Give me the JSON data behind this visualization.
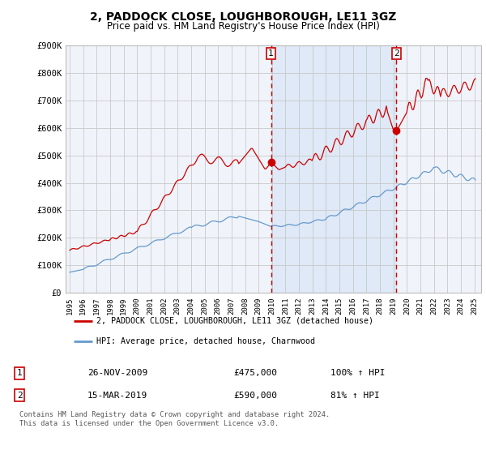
{
  "title": "2, PADDOCK CLOSE, LOUGHBOROUGH, LE11 3GZ",
  "subtitle": "Price paid vs. HM Land Registry's House Price Index (HPI)",
  "title_fontsize": 10,
  "subtitle_fontsize": 8.5,
  "background_color": "#ffffff",
  "plot_bg_color": "#f0f4fa",
  "grid_color": "#c8c8c8",
  "red_line_color": "#cc0000",
  "blue_line_color": "#6699cc",
  "shade_color": "#ccddf5",
  "ylim": [
    0,
    900000
  ],
  "yticks": [
    0,
    100000,
    200000,
    300000,
    400000,
    500000,
    600000,
    700000,
    800000,
    900000
  ],
  "ytick_labels": [
    "£0",
    "£100K",
    "£200K",
    "£300K",
    "£400K",
    "£500K",
    "£600K",
    "£700K",
    "£800K",
    "£900K"
  ],
  "xlim_start": 1994.7,
  "xlim_end": 2025.5,
  "xtick_years": [
    1995,
    1996,
    1997,
    1998,
    1999,
    2000,
    2001,
    2002,
    2003,
    2004,
    2005,
    2006,
    2007,
    2008,
    2009,
    2010,
    2011,
    2012,
    2013,
    2014,
    2015,
    2016,
    2017,
    2018,
    2019,
    2020,
    2021,
    2022,
    2023,
    2024,
    2025
  ],
  "event1_x": 2009.92,
  "event1_y": 475000,
  "event1_label": "1",
  "event1_date": "26-NOV-2009",
  "event1_price": "£475,000",
  "event1_hpi": "100% ↑ HPI",
  "event2_x": 2019.21,
  "event2_y": 590000,
  "event2_label": "2",
  "event2_date": "15-MAR-2019",
  "event2_price": "£590,000",
  "event2_hpi": "81% ↑ HPI",
  "legend_line1": "2, PADDOCK CLOSE, LOUGHBOROUGH, LE11 3GZ (detached house)",
  "legend_line2": "HPI: Average price, detached house, Charnwood",
  "footer": "Contains HM Land Registry data © Crown copyright and database right 2024.\nThis data is licensed under the Open Government Licence v3.0.",
  "shade_start": 2009.92,
  "shade_end": 2019.21
}
